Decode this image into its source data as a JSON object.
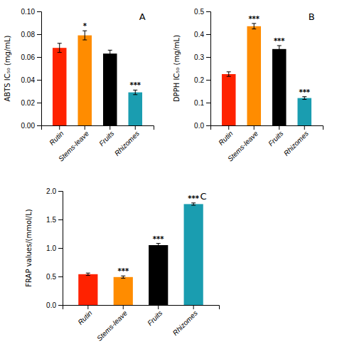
{
  "chart_data": [
    {
      "type": "bar",
      "title": "A",
      "categories": [
        "Rutin",
        "Stems-leave",
        "Fruits",
        "Rhizomes"
      ],
      "values": [
        0.068,
        0.079,
        0.063,
        0.029
      ],
      "errors": [
        0.004,
        0.004,
        0.003,
        0.002
      ],
      "sig_labels": [
        null,
        "*",
        null,
        "***"
      ],
      "colors": [
        "#ff2200",
        "#ff8c00",
        "#000000",
        "#1a9db0"
      ],
      "ylabel": "ABTS IC₅₀ (mg/mL)",
      "ylim": [
        0,
        0.1
      ],
      "yticks": [
        {
          "value": 0.0,
          "label": "0.00"
        },
        0.02,
        0.04,
        0.06,
        0.08,
        {
          "value": 0.1,
          "label": "0.10"
        }
      ]
    },
    {
      "type": "bar",
      "title": "B",
      "categories": [
        "Rutin",
        "Stems-leave",
        "Fruits",
        "Rhizomes"
      ],
      "values": [
        0.225,
        0.435,
        0.335,
        0.12
      ],
      "errors": [
        0.01,
        0.012,
        0.015,
        0.006
      ],
      "sig_labels": [
        null,
        "***",
        "***",
        "***"
      ],
      "colors": [
        "#ff2200",
        "#ff8c00",
        "#000000",
        "#1a9db0"
      ],
      "ylabel": "DPPH IC₅₀ (mg/mL)",
      "ylim": [
        0,
        0.5
      ],
      "yticks": [
        {
          "value": 0.0,
          "label": "0.0"
        },
        0.1,
        0.2,
        0.3,
        0.4,
        0.5
      ]
    },
    {
      "type": "bar",
      "title": "C",
      "categories": [
        "Rutin",
        "Stems-leave",
        "Fruits",
        "Rhizomes"
      ],
      "values": [
        0.54,
        0.49,
        1.05,
        1.77
      ],
      "errors": [
        0.02,
        0.02,
        0.03,
        0.02
      ],
      "sig_labels": [
        null,
        "***",
        "***",
        "***"
      ],
      "colors": [
        "#ff2200",
        "#ff8c00",
        "#000000",
        "#1a9db0"
      ],
      "ylabel": "FRAP values/(mmol/L)",
      "ylim": [
        0,
        2.0
      ],
      "yticks": [
        {
          "value": 0.0,
          "label": "0.0"
        },
        0.5,
        {
          "value": 1.0,
          "label": "1.0"
        },
        1.5,
        {
          "value": 2.0,
          "label": "2.0"
        }
      ]
    }
  ]
}
